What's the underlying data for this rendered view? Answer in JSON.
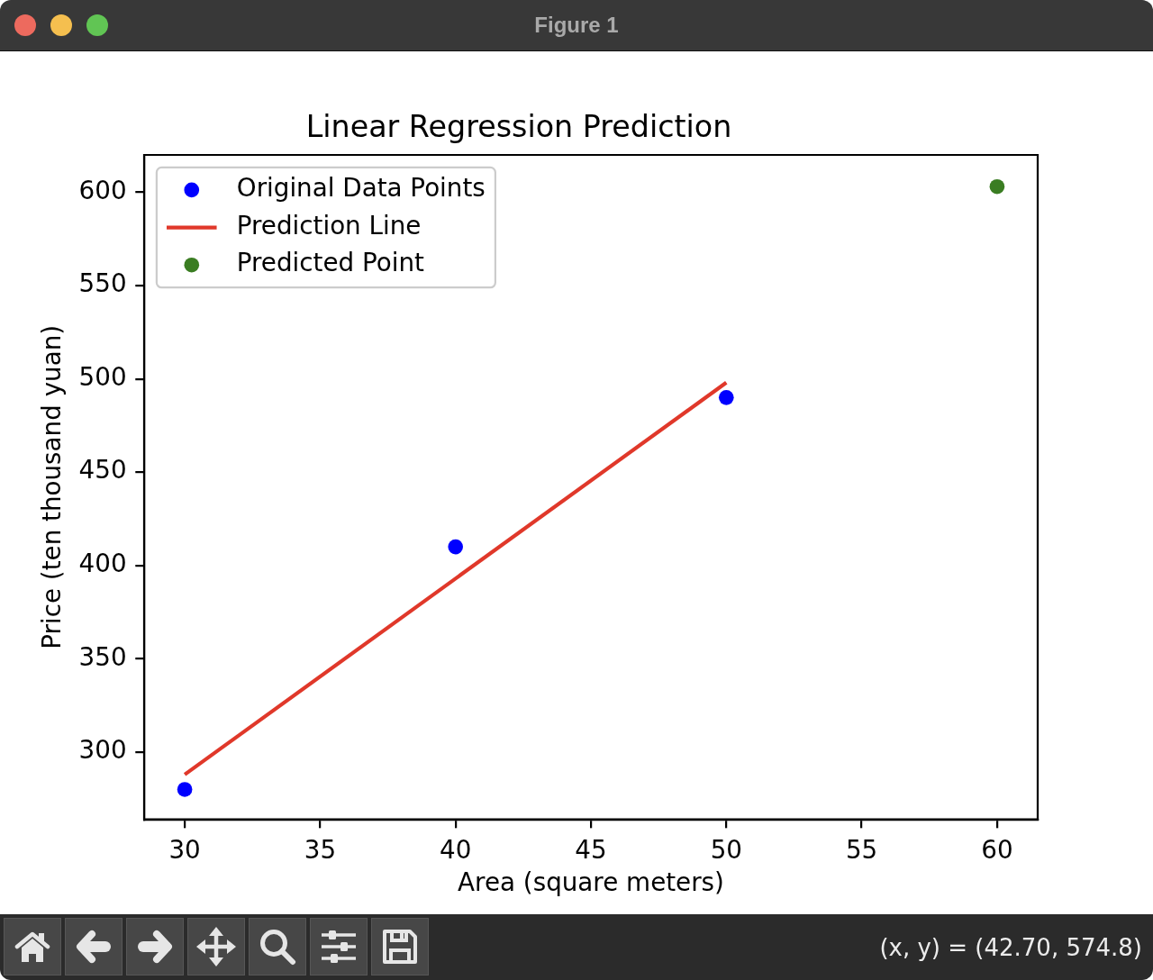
{
  "chart_data": {
    "type": "scatter",
    "title": "Linear Regression Prediction",
    "xlabel": "Area (square meters)",
    "ylabel": "Price (ten thousand yuan)",
    "series": [
      {
        "name": "Original Data Points",
        "type": "scatter",
        "color": "#0000ff",
        "x": [
          30,
          40,
          50
        ],
        "values": [
          280,
          410,
          490
        ]
      },
      {
        "name": "Prediction Line",
        "type": "line",
        "color": "#e0382a",
        "x": [
          30,
          50
        ],
        "values": [
          288,
          498
        ],
        "marker": "none"
      },
      {
        "name": "Predicted Point",
        "type": "scatter",
        "color": "#3a7d22",
        "x": [
          60
        ],
        "values": [
          603
        ]
      }
    ],
    "xlim": [
      28.5,
      61.5
    ],
    "xticks": [
      30,
      35,
      40,
      45,
      50,
      55,
      60
    ],
    "ylim": [
      264,
      620
    ],
    "yticks": [
      300,
      350,
      400,
      450,
      500,
      550,
      600
    ],
    "legend": "top left",
    "marker": "circle",
    "line_style": "solid",
    "annotations": [
      "Figure 1",
      "(x, y) = (42.70, 574.8)"
    ]
  }
}
